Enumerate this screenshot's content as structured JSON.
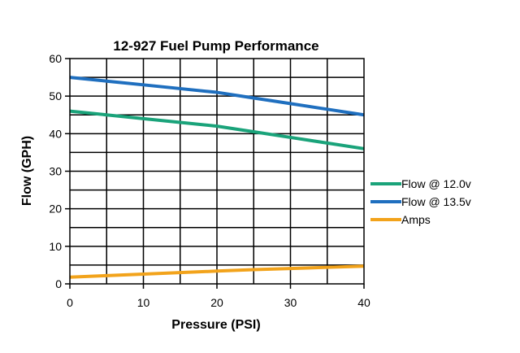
{
  "chart_data": {
    "type": "line",
    "title": "12-927 Fuel Pump Performance",
    "xlabel": "Pressure (PSI)",
    "ylabel": "Flow (GPH)",
    "xlim": [
      0,
      40
    ],
    "ylim": [
      0,
      60
    ],
    "x_ticks": [
      0,
      10,
      20,
      30,
      40
    ],
    "y_ticks": [
      0,
      10,
      20,
      30,
      40,
      50,
      60
    ],
    "x_tick_labels": [
      "0",
      "10",
      "20",
      "30",
      "40"
    ],
    "y_tick_labels": [
      "0",
      "10",
      "20",
      "30",
      "40",
      "50",
      "60"
    ],
    "grid": true,
    "legend_position": "right",
    "series": [
      {
        "name": "Flow @ 12.0v",
        "color": "#1aa37a",
        "x": [
          0,
          5,
          10,
          15,
          20,
          25,
          30,
          35,
          40
        ],
        "y": [
          46,
          45,
          44,
          43,
          42,
          40.5,
          39,
          37.5,
          36
        ]
      },
      {
        "name": "Flow @ 13.5v",
        "color": "#1f6fbf",
        "x": [
          0,
          5,
          10,
          15,
          20,
          25,
          30,
          35,
          40
        ],
        "y": [
          55,
          54,
          53,
          52,
          51,
          49.5,
          48,
          46.5,
          45
        ]
      },
      {
        "name": "Amps",
        "color": "#f2a31b",
        "x": [
          0,
          5,
          10,
          15,
          20,
          25,
          30,
          35,
          40
        ],
        "y": [
          1.8,
          2.2,
          2.6,
          3.0,
          3.4,
          3.8,
          4.1,
          4.4,
          4.7
        ]
      }
    ]
  }
}
